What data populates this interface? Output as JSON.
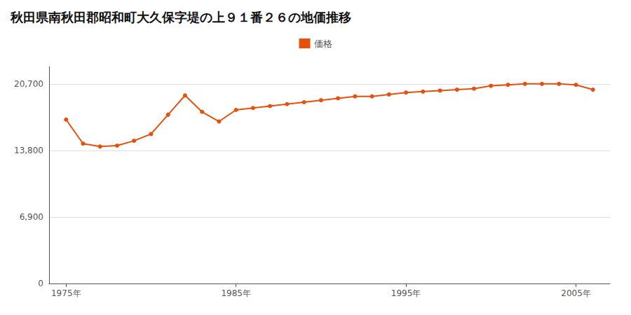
{
  "chart_data": {
    "type": "line",
    "title": "秋田県南秋田郡昭和町大久保字堤の上９１番２６の地価推移",
    "x": [
      1975,
      1976,
      1977,
      1978,
      1979,
      1980,
      1981,
      1982,
      1983,
      1984,
      1985,
      1986,
      1987,
      1988,
      1989,
      1990,
      1991,
      1992,
      1993,
      1994,
      1995,
      1996,
      1997,
      1998,
      1999,
      2000,
      2001,
      2002,
      2003,
      2004,
      2005,
      2006
    ],
    "series": [
      {
        "name": "価格",
        "color": "#e8500a",
        "marker": "circle",
        "values": [
          17000,
          14500,
          14200,
          14300,
          14800,
          15500,
          17500,
          19500,
          17800,
          16800,
          18000,
          18200,
          18400,
          18600,
          18800,
          19000,
          19200,
          19400,
          19400,
          19600,
          19800,
          19900,
          20000,
          20100,
          20200,
          20500,
          20600,
          20700,
          20700,
          20700,
          20600,
          20100
        ]
      }
    ],
    "xlim": [
      1974.0,
      2007.0
    ],
    "xticks": [
      {
        "value": 1975,
        "label": "1975年"
      },
      {
        "value": 1985,
        "label": "1985年"
      },
      {
        "value": 1995,
        "label": "1995年"
      },
      {
        "value": 2005,
        "label": "2005年"
      }
    ],
    "ylim": [
      0,
      22500
    ],
    "yticks": [
      0,
      {
        "value": 6900,
        "label": "6,900"
      },
      {
        "value": 13800,
        "label": "13,800"
      },
      {
        "value": 20700,
        "label": "20,700"
      }
    ],
    "grid": true,
    "legend": "top"
  }
}
